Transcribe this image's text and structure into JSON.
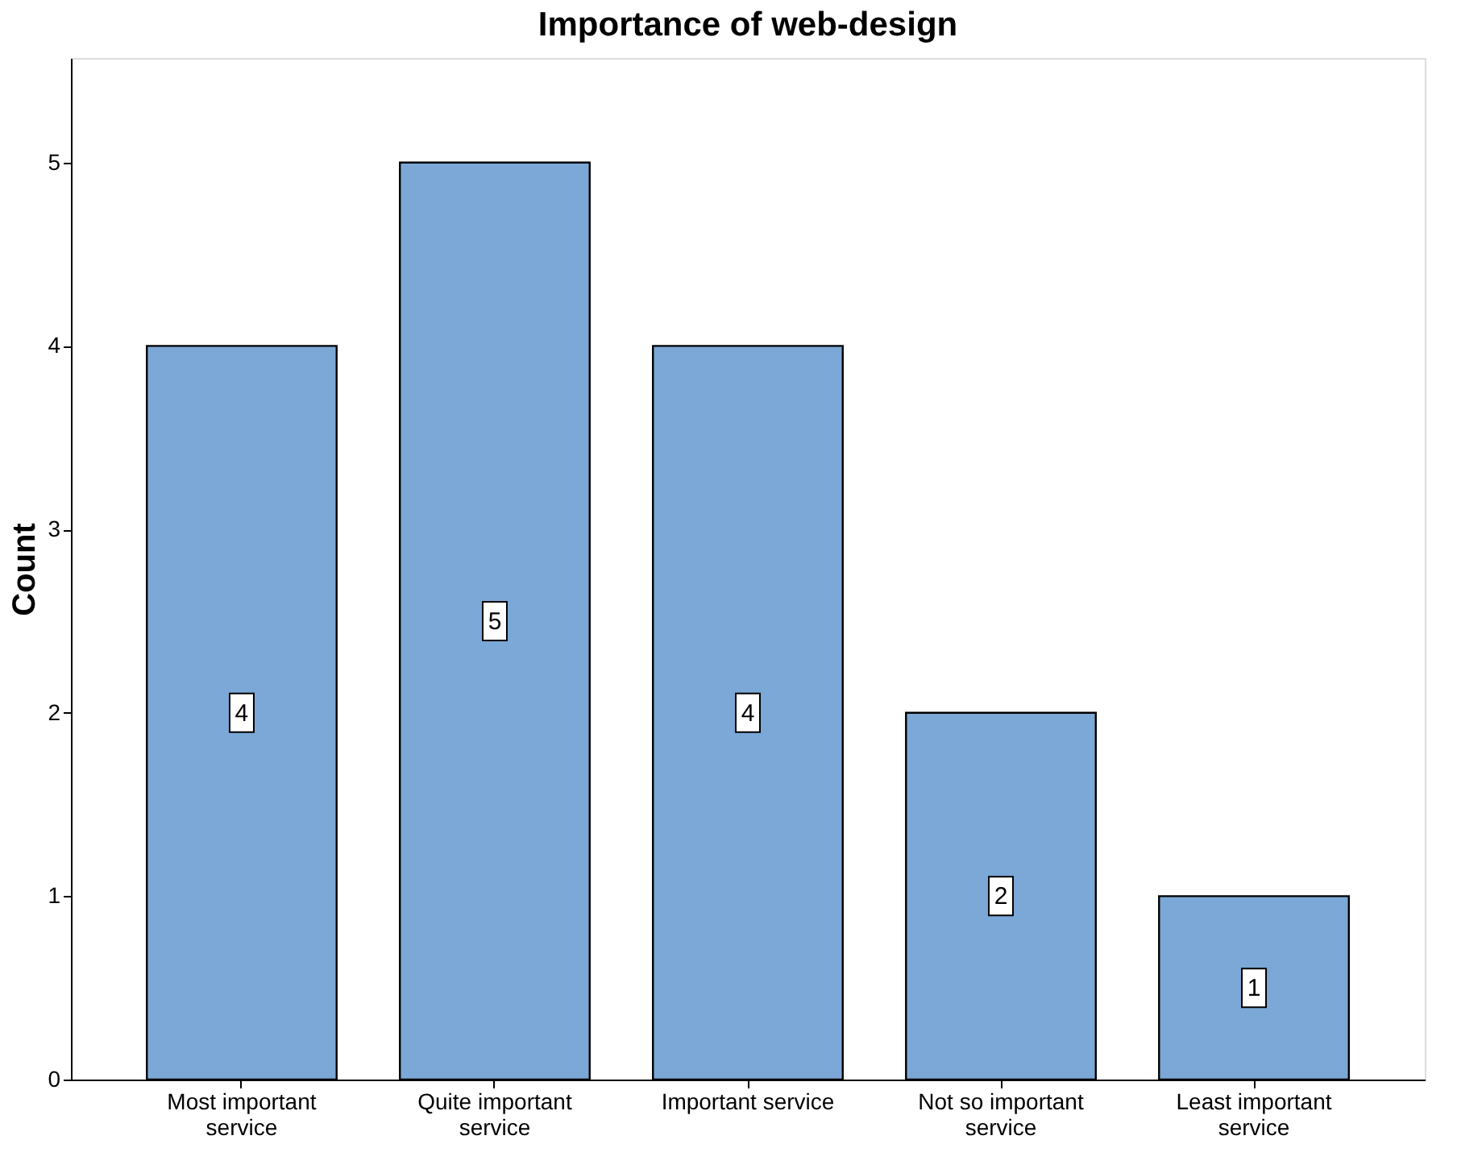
{
  "chart_data": {
    "type": "bar",
    "title": "Importance of web-design",
    "ylabel": "Count",
    "categories": [
      "Most important service",
      "Quite important service",
      "Important service",
      "Not so important service",
      "Least important service"
    ],
    "values": [
      4,
      5,
      4,
      2,
      1
    ],
    "color": "#7ba8d6",
    "ylim": [
      0,
      5.57
    ],
    "yticks": [
      0,
      1,
      2,
      3,
      4,
      5
    ],
    "grid": false,
    "data_labels": true
  }
}
